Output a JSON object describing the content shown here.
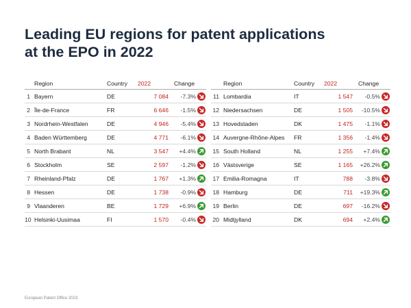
{
  "title_line1": "Leading EU regions for patent applications",
  "title_line2": "at the EPO in 2022",
  "headers": {
    "region": "Region",
    "country": "Country",
    "value": "2022",
    "change": "Change"
  },
  "colors": {
    "up": "#3a9a32",
    "down": "#c62828",
    "value": "#c0221a"
  },
  "footer": "European Patent Office 2023",
  "chart_data": {
    "type": "table",
    "title": "Leading EU regions for patent applications at the EPO in 2022",
    "columns": [
      "Region",
      "Country",
      "2022",
      "Change"
    ],
    "rows": [
      {
        "rank": "1",
        "region": "Bayern",
        "country": "DE",
        "value": "7 084",
        "change": "-7.3%",
        "dir": "down"
      },
      {
        "rank": "2",
        "region": "Île-de-France",
        "country": "FR",
        "value": "6 646",
        "change": "-1.5%",
        "dir": "down"
      },
      {
        "rank": "3",
        "region": "Nordrhein-Westfalen",
        "country": "DE",
        "value": "4 946",
        "change": "-5.4%",
        "dir": "down"
      },
      {
        "rank": "4",
        "region": "Baden Württemberg",
        "country": "DE",
        "value": "4 771",
        "change": "-6.1%",
        "dir": "down"
      },
      {
        "rank": "5",
        "region": "North Brabant",
        "country": "NL",
        "value": "3 547",
        "change": "+4.4%",
        "dir": "up"
      },
      {
        "rank": "6",
        "region": "Stockholm",
        "country": "SE",
        "value": "2 597",
        "change": "-1.2%",
        "dir": "down"
      },
      {
        "rank": "7",
        "region": "Rheinland-Pfalz",
        "country": "DE",
        "value": "1 767",
        "change": "+1.3%",
        "dir": "up"
      },
      {
        "rank": "8",
        "region": "Hessen",
        "country": "DE",
        "value": "1 738",
        "change": "-0.9%",
        "dir": "down"
      },
      {
        "rank": "9",
        "region": "Vlaanderen",
        "country": "BE",
        "value": "1 729",
        "change": "+6.9%",
        "dir": "up"
      },
      {
        "rank": "10",
        "region": "Helsinki-Uusimaa",
        "country": "FI",
        "value": "1 570",
        "change": "-0.4%",
        "dir": "down"
      },
      {
        "rank": "11",
        "region": "Lombardia",
        "country": "IT",
        "value": "1 547",
        "change": "-0.5%",
        "dir": "down"
      },
      {
        "rank": "12",
        "region": "Niedersachsen",
        "country": "DE",
        "value": "1 505",
        "change": "-10.5%",
        "dir": "down"
      },
      {
        "rank": "13",
        "region": "Hovedstaden",
        "country": "DK",
        "value": "1 475",
        "change": "-1.1%",
        "dir": "down"
      },
      {
        "rank": "14",
        "region": "Auvergne-Rhône-Alpes",
        "country": "FR",
        "value": "1 356",
        "change": "-1.4%",
        "dir": "down"
      },
      {
        "rank": "15",
        "region": "South Holland",
        "country": "NL",
        "value": "1 255",
        "change": "+7.4%",
        "dir": "up"
      },
      {
        "rank": "16",
        "region": "Västsverige",
        "country": "SE",
        "value": "1 165",
        "change": "+26.2%",
        "dir": "up"
      },
      {
        "rank": "17",
        "region": "Emilia-Romagna",
        "country": "IT",
        "value": "788",
        "change": "-3.8%",
        "dir": "down"
      },
      {
        "rank": "18",
        "region": "Hamburg",
        "country": "DE",
        "value": "711",
        "change": "+19.3%",
        "dir": "up"
      },
      {
        "rank": "19",
        "region": "Berlin",
        "country": "DE",
        "value": "697",
        "change": "-16.2%",
        "dir": "down"
      },
      {
        "rank": "20",
        "region": "Midtjylland",
        "country": "DK",
        "value": "694",
        "change": "+2.4%",
        "dir": "up"
      }
    ]
  }
}
